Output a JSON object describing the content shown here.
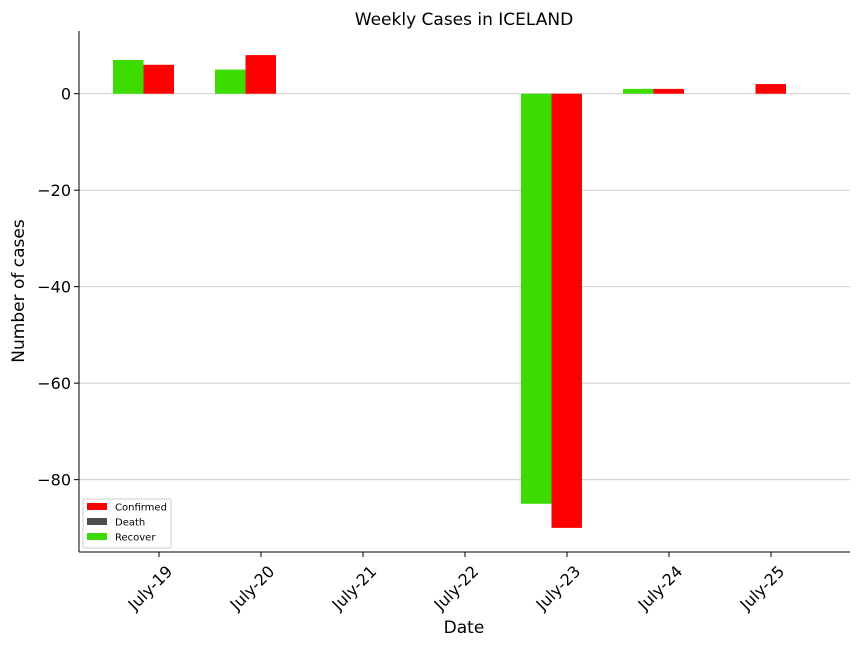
{
  "chart_data": {
    "type": "bar",
    "title": "Weekly Cases in ICELAND",
    "xlabel": "Date",
    "ylabel": "Number of cases",
    "categories": [
      "July-19",
      "July-20",
      "July-21",
      "July-22",
      "July-23",
      "July-24",
      "July-25"
    ],
    "series": [
      {
        "name": "Recover",
        "color": "#3cdc00",
        "values": [
          7,
          5,
          0,
          0,
          -85,
          1,
          0
        ]
      },
      {
        "name": "Confirmed",
        "color": "#ff0000",
        "values": [
          6,
          8,
          0,
          0,
          -90,
          1,
          2
        ]
      },
      {
        "name": "Death",
        "color": "#4d4d4d",
        "values": [
          0,
          0,
          0,
          0,
          0,
          0,
          0
        ]
      }
    ],
    "legend": [
      {
        "name": "Confirmed",
        "color": "#ff0000"
      },
      {
        "name": "Death",
        "color": "#4d4d4d"
      },
      {
        "name": "Recover",
        "color": "#3cdc00"
      }
    ],
    "ylim": [
      -95,
      13
    ],
    "yticks": [
      0,
      -20,
      -40,
      -60,
      -80
    ],
    "ytick_labels": [
      "0",
      "−20",
      "−40",
      "−60",
      "−80"
    ],
    "grid": "horizontal",
    "legend_position": "lower-left"
  }
}
